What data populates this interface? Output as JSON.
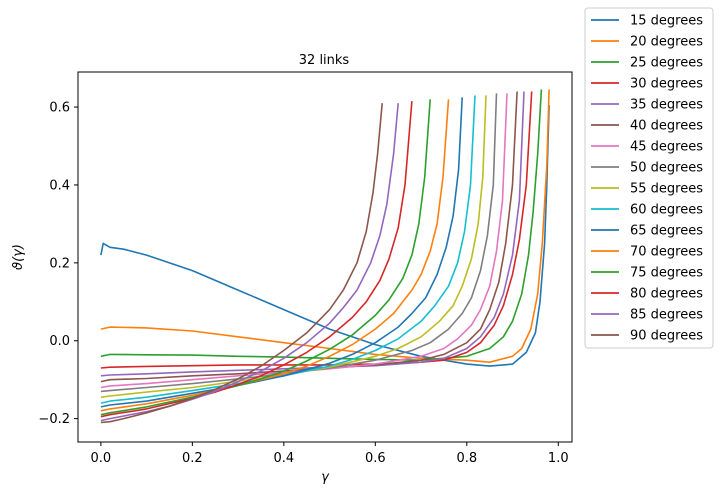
{
  "chart_data": {
    "type": "line",
    "title": "32 links",
    "xlabel": "γ",
    "ylabel": "ϑ(γ)",
    "xlim": [
      -0.05,
      1.03
    ],
    "ylim": [
      -0.26,
      0.69
    ],
    "xticks": [
      0.0,
      0.2,
      0.4,
      0.6,
      0.8,
      1.0
    ],
    "xtick_labels": [
      "0.0",
      "0.2",
      "0.4",
      "0.6",
      "0.8",
      "1.0"
    ],
    "yticks": [
      -0.2,
      0.0,
      0.2,
      0.4,
      0.6
    ],
    "ytick_labels": [
      "−0.2",
      "0.0",
      "0.2",
      "0.4",
      "0.6"
    ],
    "grid": false,
    "legend_position": "outside-right",
    "series": [
      {
        "name": "15 degrees",
        "color": "#1f77b4",
        "x": [
          0.0,
          0.005,
          0.02,
          0.05,
          0.1,
          0.2,
          0.3,
          0.4,
          0.5,
          0.6,
          0.7,
          0.8,
          0.85,
          0.9,
          0.93,
          0.95,
          0.96,
          0.97,
          0.975,
          0.98
        ],
        "y": [
          0.22,
          0.25,
          0.24,
          0.235,
          0.22,
          0.18,
          0.13,
          0.08,
          0.03,
          -0.01,
          -0.04,
          -0.06,
          -0.065,
          -0.06,
          -0.03,
          0.02,
          0.1,
          0.25,
          0.4,
          0.605
        ]
      },
      {
        "name": "20 degrees",
        "color": "#ff7f0e",
        "x": [
          0.0,
          0.02,
          0.1,
          0.2,
          0.3,
          0.4,
          0.5,
          0.6,
          0.7,
          0.8,
          0.85,
          0.9,
          0.92,
          0.94,
          0.955,
          0.965,
          0.975,
          0.98
        ],
        "y": [
          0.03,
          0.035,
          0.033,
          0.025,
          0.01,
          -0.005,
          -0.02,
          -0.035,
          -0.045,
          -0.05,
          -0.055,
          -0.04,
          -0.02,
          0.03,
          0.12,
          0.25,
          0.45,
          0.645
        ]
      },
      {
        "name": "25 degrees",
        "color": "#2ca02c",
        "x": [
          0.0,
          0.02,
          0.1,
          0.2,
          0.3,
          0.4,
          0.5,
          0.6,
          0.7,
          0.8,
          0.85,
          0.88,
          0.9,
          0.92,
          0.935,
          0.945,
          0.955,
          0.963
        ],
        "y": [
          -0.04,
          -0.035,
          -0.036,
          -0.037,
          -0.04,
          -0.042,
          -0.045,
          -0.048,
          -0.05,
          -0.04,
          -0.02,
          0.01,
          0.05,
          0.12,
          0.22,
          0.33,
          0.48,
          0.645
        ]
      },
      {
        "name": "30 degrees",
        "color": "#d62728",
        "x": [
          0.0,
          0.02,
          0.1,
          0.2,
          0.3,
          0.4,
          0.5,
          0.6,
          0.7,
          0.75,
          0.8,
          0.83,
          0.86,
          0.88,
          0.9,
          0.915,
          0.93,
          0.942
        ],
        "y": [
          -0.07,
          -0.068,
          -0.066,
          -0.064,
          -0.062,
          -0.062,
          -0.062,
          -0.06,
          -0.055,
          -0.05,
          -0.03,
          -0.005,
          0.04,
          0.09,
          0.17,
          0.26,
          0.4,
          0.64
        ]
      },
      {
        "name": "35 degrees",
        "color": "#9467bd",
        "x": [
          0.0,
          0.02,
          0.1,
          0.2,
          0.3,
          0.4,
          0.5,
          0.6,
          0.7,
          0.75,
          0.8,
          0.83,
          0.86,
          0.88,
          0.9,
          0.915,
          0.925
        ],
        "y": [
          -0.09,
          -0.088,
          -0.085,
          -0.08,
          -0.076,
          -0.072,
          -0.068,
          -0.064,
          -0.055,
          -0.045,
          -0.02,
          0.01,
          0.06,
          0.12,
          0.22,
          0.36,
          0.64
        ]
      },
      {
        "name": "40 degrees",
        "color": "#8c564b",
        "x": [
          0.0,
          0.02,
          0.1,
          0.2,
          0.3,
          0.4,
          0.5,
          0.6,
          0.7,
          0.75,
          0.8,
          0.83,
          0.85,
          0.87,
          0.885,
          0.9,
          0.91
        ],
        "y": [
          -0.105,
          -0.1,
          -0.097,
          -0.09,
          -0.085,
          -0.078,
          -0.07,
          -0.062,
          -0.05,
          -0.035,
          -0.005,
          0.03,
          0.08,
          0.15,
          0.25,
          0.4,
          0.64
        ]
      },
      {
        "name": "45 degrees",
        "color": "#e377c2",
        "x": [
          0.0,
          0.02,
          0.1,
          0.2,
          0.3,
          0.4,
          0.5,
          0.6,
          0.7,
          0.75,
          0.78,
          0.81,
          0.83,
          0.85,
          0.865,
          0.878,
          0.888
        ],
        "y": [
          -0.12,
          -0.116,
          -0.11,
          -0.1,
          -0.09,
          -0.082,
          -0.072,
          -0.06,
          -0.04,
          -0.02,
          0.005,
          0.04,
          0.08,
          0.14,
          0.23,
          0.36,
          0.635
        ]
      },
      {
        "name": "50 degrees",
        "color": "#7f7f7f",
        "x": [
          0.0,
          0.02,
          0.1,
          0.2,
          0.3,
          0.4,
          0.5,
          0.6,
          0.68,
          0.72,
          0.76,
          0.79,
          0.81,
          0.83,
          0.845,
          0.858,
          0.865
        ],
        "y": [
          -0.13,
          -0.128,
          -0.12,
          -0.11,
          -0.098,
          -0.085,
          -0.07,
          -0.05,
          -0.025,
          -0.005,
          0.03,
          0.07,
          0.11,
          0.18,
          0.27,
          0.4,
          0.635
        ]
      },
      {
        "name": "55 degrees",
        "color": "#bcbd22",
        "x": [
          0.0,
          0.02,
          0.1,
          0.2,
          0.3,
          0.4,
          0.5,
          0.6,
          0.65,
          0.7,
          0.74,
          0.77,
          0.79,
          0.81,
          0.825,
          0.835,
          0.842
        ],
        "y": [
          -0.145,
          -0.142,
          -0.132,
          -0.12,
          -0.104,
          -0.088,
          -0.068,
          -0.04,
          -0.02,
          0.01,
          0.05,
          0.09,
          0.14,
          0.21,
          0.3,
          0.42,
          0.63
        ]
      },
      {
        "name": "60 degrees",
        "color": "#17becf",
        "x": [
          0.0,
          0.02,
          0.1,
          0.2,
          0.3,
          0.4,
          0.5,
          0.55,
          0.6,
          0.65,
          0.7,
          0.73,
          0.76,
          0.78,
          0.795,
          0.808,
          0.818
        ],
        "y": [
          -0.16,
          -0.155,
          -0.145,
          -0.128,
          -0.11,
          -0.09,
          -0.065,
          -0.048,
          -0.025,
          0.005,
          0.05,
          0.09,
          0.14,
          0.2,
          0.28,
          0.4,
          0.63
        ]
      },
      {
        "name": "65 degrees",
        "color": "#1f77b4",
        "x": [
          0.0,
          0.02,
          0.1,
          0.2,
          0.3,
          0.4,
          0.5,
          0.55,
          0.6,
          0.65,
          0.68,
          0.71,
          0.735,
          0.755,
          0.77,
          0.782,
          0.79
        ],
        "y": [
          -0.17,
          -0.165,
          -0.155,
          -0.135,
          -0.115,
          -0.09,
          -0.058,
          -0.035,
          -0.005,
          0.035,
          0.07,
          0.11,
          0.17,
          0.24,
          0.32,
          0.44,
          0.625
        ]
      },
      {
        "name": "70 degrees",
        "color": "#ff7f0e",
        "x": [
          0.0,
          0.02,
          0.1,
          0.2,
          0.3,
          0.4,
          0.45,
          0.5,
          0.55,
          0.6,
          0.64,
          0.68,
          0.7,
          0.72,
          0.735,
          0.748,
          0.76
        ],
        "y": [
          -0.18,
          -0.175,
          -0.162,
          -0.14,
          -0.115,
          -0.085,
          -0.065,
          -0.04,
          -0.01,
          0.03,
          0.07,
          0.13,
          0.17,
          0.23,
          0.3,
          0.42,
          0.62
        ]
      },
      {
        "name": "75 degrees",
        "color": "#2ca02c",
        "x": [
          0.0,
          0.02,
          0.1,
          0.2,
          0.3,
          0.35,
          0.4,
          0.45,
          0.5,
          0.55,
          0.6,
          0.63,
          0.66,
          0.68,
          0.695,
          0.708,
          0.72
        ],
        "y": [
          -0.19,
          -0.185,
          -0.17,
          -0.145,
          -0.115,
          -0.098,
          -0.078,
          -0.052,
          -0.022,
          0.015,
          0.065,
          0.105,
          0.16,
          0.22,
          0.3,
          0.42,
          0.62
        ]
      },
      {
        "name": "80 degrees",
        "color": "#d62728",
        "x": [
          0.0,
          0.02,
          0.1,
          0.2,
          0.25,
          0.3,
          0.35,
          0.4,
          0.45,
          0.5,
          0.55,
          0.58,
          0.61,
          0.63,
          0.65,
          0.665,
          0.68
        ],
        "y": [
          -0.195,
          -0.19,
          -0.175,
          -0.148,
          -0.132,
          -0.112,
          -0.09,
          -0.062,
          -0.03,
          0.01,
          0.06,
          0.1,
          0.155,
          0.21,
          0.29,
          0.4,
          0.615
        ]
      },
      {
        "name": "85 degrees",
        "color": "#9467bd",
        "x": [
          0.0,
          0.02,
          0.1,
          0.15,
          0.2,
          0.25,
          0.3,
          0.35,
          0.4,
          0.45,
          0.5,
          0.53,
          0.56,
          0.59,
          0.61,
          0.625,
          0.64,
          0.65
        ],
        "y": [
          -0.205,
          -0.2,
          -0.182,
          -0.168,
          -0.15,
          -0.13,
          -0.105,
          -0.078,
          -0.045,
          -0.005,
          0.045,
          0.085,
          0.13,
          0.2,
          0.27,
          0.35,
          0.48,
          0.61
        ]
      },
      {
        "name": "90 degrees",
        "color": "#8c564b",
        "x": [
          0.0,
          0.02,
          0.05,
          0.1,
          0.15,
          0.2,
          0.25,
          0.3,
          0.35,
          0.4,
          0.45,
          0.5,
          0.53,
          0.56,
          0.58,
          0.595,
          0.605,
          0.615
        ],
        "y": [
          -0.21,
          -0.208,
          -0.2,
          -0.185,
          -0.168,
          -0.148,
          -0.125,
          -0.098,
          -0.065,
          -0.025,
          0.02,
          0.08,
          0.13,
          0.2,
          0.28,
          0.38,
          0.48,
          0.61
        ]
      }
    ]
  }
}
